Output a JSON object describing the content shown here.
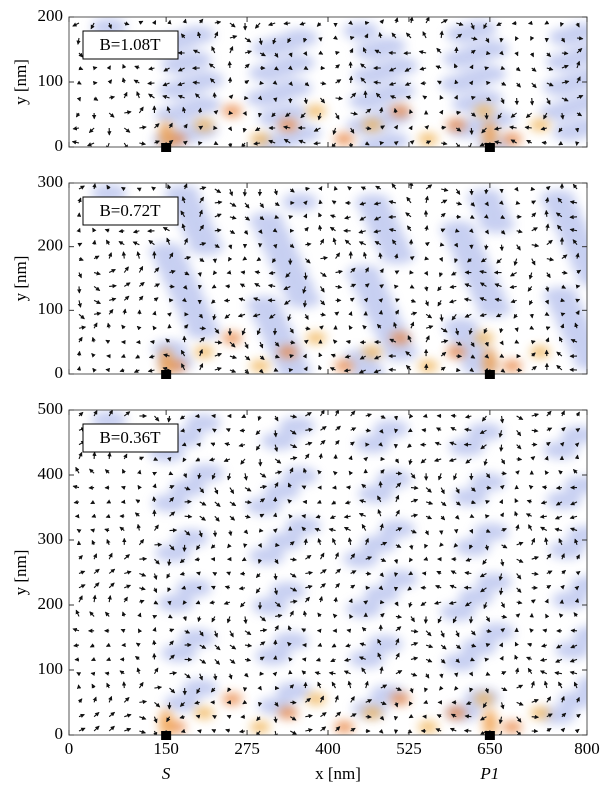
{
  "chart_data": [
    {
      "type": "quiver",
      "label": "B=1.08T",
      "ylabel": "y [nm]",
      "xlim": [
        0,
        800
      ],
      "xticks": [
        0,
        150,
        275,
        400,
        525,
        650,
        800
      ],
      "ylim": [
        0,
        200
      ],
      "yticks": [
        0,
        100,
        200
      ],
      "contacts": [
        150,
        650
      ]
    },
    {
      "type": "quiver",
      "label": "B=0.72T",
      "ylabel": "y [nm]",
      "xlim": [
        0,
        800
      ],
      "xticks": [
        0,
        150,
        275,
        400,
        525,
        650,
        800
      ],
      "ylim": [
        0,
        300
      ],
      "yticks": [
        0,
        100,
        200,
        300
      ],
      "contacts": [
        150,
        650
      ]
    },
    {
      "type": "quiver",
      "label": "B=0.36T",
      "ylabel": "y [nm]",
      "xlabel": "x [nm]",
      "xlim": [
        0,
        800
      ],
      "xticks": [
        0,
        150,
        275,
        400,
        525,
        650,
        800
      ],
      "ylim": [
        0,
        500
      ],
      "yticks": [
        0,
        100,
        200,
        300,
        400,
        500
      ],
      "contacts": [
        150,
        650
      ],
      "contact_labels": [
        "S",
        "P1"
      ]
    }
  ]
}
